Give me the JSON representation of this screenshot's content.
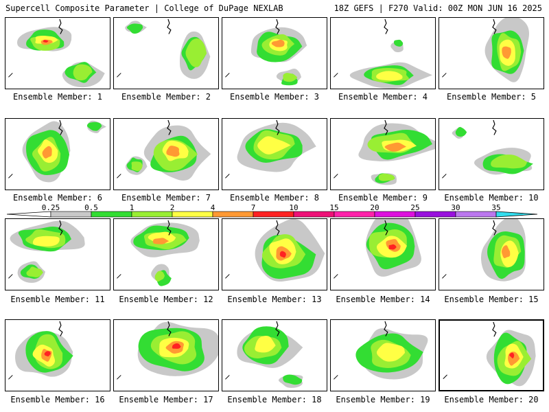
{
  "header": {
    "title": "Supercell Composite Parameter | College of DuPage NEXLAB",
    "run_info": "18Z GEFS | F270 Valid: 00Z MON JUN 16 2025"
  },
  "members": [
    {
      "label": "Ensemble Member: 1"
    },
    {
      "label": "Ensemble Member: 2"
    },
    {
      "label": "Ensemble Member: 3"
    },
    {
      "label": "Ensemble Member: 4"
    },
    {
      "label": "Ensemble Member: 5"
    },
    {
      "label": "Ensemble Member: 6"
    },
    {
      "label": "Ensemble Member: 7"
    },
    {
      "label": "Ensemble Member: 8"
    },
    {
      "label": "Ensemble Member: 9"
    },
    {
      "label": "Ensemble Member: 10"
    },
    {
      "label": "Ensemble Member: 11"
    },
    {
      "label": "Ensemble Member: 12"
    },
    {
      "label": "Ensemble Member: 13"
    },
    {
      "label": "Ensemble Member: 14"
    },
    {
      "label": "Ensemble Member: 15"
    },
    {
      "label": "Ensemble Member: 16"
    },
    {
      "label": "Ensemble Member: 17"
    },
    {
      "label": "Ensemble Member: 18"
    },
    {
      "label": "Ensemble Member: 19"
    },
    {
      "label": "Ensemble Member: 20"
    }
  ],
  "colorbar": {
    "ticks": [
      "0.25",
      "0.5",
      "1",
      "2",
      "4",
      "7",
      "10",
      "15",
      "20",
      "25",
      "30",
      "35"
    ],
    "colors": [
      "#c8c8c8",
      "#33dd33",
      "#99ee33",
      "#ffff44",
      "#ff9933",
      "#ff2222",
      "#ee1177",
      "#ff22aa",
      "#dd11dd",
      "#9911dd",
      "#bb77ee",
      "#33ddee"
    ]
  }
}
